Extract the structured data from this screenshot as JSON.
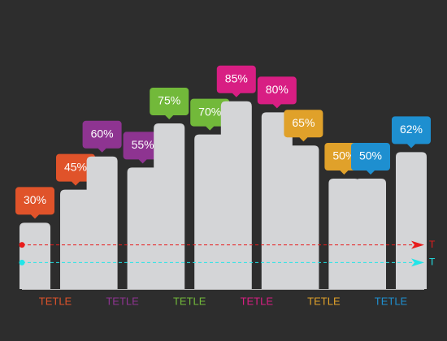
{
  "chart_data": {
    "type": "bar",
    "categories": [
      "TETLE",
      "TETLE",
      "TETLE",
      "TETLE",
      "TETLE",
      "TETLE"
    ],
    "colors": [
      "#e0532a",
      "#8e3491",
      "#72b93a",
      "#d81e83",
      "#e0a12a",
      "#1e8fd0"
    ],
    "bar_color": "#d4d5d7",
    "series": [
      {
        "values": [
          30,
          60,
          75,
          85,
          65,
          50
        ],
        "value_labels": [
          "30%",
          "60%",
          "75%",
          "85%",
          "65%",
          "50%"
        ]
      },
      {
        "values": [
          45,
          55,
          70,
          80,
          50,
          62
        ],
        "value_labels": [
          "45%",
          "55%",
          "70%",
          "80%",
          "50%",
          "62%"
        ]
      }
    ],
    "ylim": [
      0,
      100
    ],
    "reference_lines": [
      {
        "value": 20,
        "label": "T",
        "color": "#e81c1c"
      },
      {
        "value": 12,
        "label": "T",
        "color": "#22e5e8"
      }
    ]
  }
}
